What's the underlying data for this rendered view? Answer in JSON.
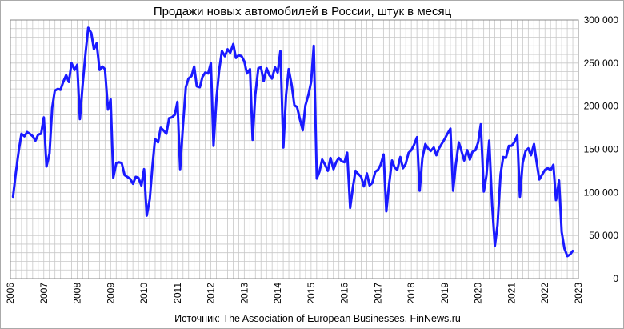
{
  "chart_data": {
    "type": "line",
    "title": "Продажи новых автомобилей в России, штук в месяц",
    "source": "Источник: The Association of European Businesses, FinNews.ru",
    "x_tick_labels": [
      "2006",
      "2007",
      "2008",
      "2009",
      "2010",
      "2011",
      "2012",
      "2013",
      "2014",
      "2015",
      "2016",
      "2017",
      "2018",
      "2019",
      "2020",
      "2021",
      "2022",
      "2023"
    ],
    "y_tick_labels": [
      "0",
      "50 000",
      "100 000",
      "150 000",
      "200 000",
      "250 000",
      "300 000"
    ],
    "xlim": [
      2006,
      2023
    ],
    "ylim": [
      0,
      300000
    ],
    "grid": true,
    "y_axis_side": "right",
    "series_color": "#1a1aff",
    "series": [
      {
        "name": "",
        "points": [
          [
            2006.08,
            95000
          ],
          [
            2006.17,
            125000
          ],
          [
            2006.25,
            148000
          ],
          [
            2006.33,
            168000
          ],
          [
            2006.42,
            165000
          ],
          [
            2006.5,
            170000
          ],
          [
            2006.58,
            168000
          ],
          [
            2006.67,
            165000
          ],
          [
            2006.75,
            160000
          ],
          [
            2006.83,
            167000
          ],
          [
            2006.92,
            168000
          ],
          [
            2007.0,
            187000
          ],
          [
            2007.08,
            130000
          ],
          [
            2007.17,
            145000
          ],
          [
            2007.25,
            198000
          ],
          [
            2007.33,
            218000
          ],
          [
            2007.42,
            220000
          ],
          [
            2007.5,
            219000
          ],
          [
            2007.58,
            228000
          ],
          [
            2007.67,
            236000
          ],
          [
            2007.75,
            228000
          ],
          [
            2007.83,
            250000
          ],
          [
            2007.92,
            242000
          ],
          [
            2008.0,
            248000
          ],
          [
            2008.08,
            185000
          ],
          [
            2008.17,
            228000
          ],
          [
            2008.25,
            262000
          ],
          [
            2008.33,
            291000
          ],
          [
            2008.42,
            285000
          ],
          [
            2008.5,
            266000
          ],
          [
            2008.58,
            273000
          ],
          [
            2008.67,
            242000
          ],
          [
            2008.75,
            246000
          ],
          [
            2008.83,
            243000
          ],
          [
            2008.92,
            196000
          ],
          [
            2009.0,
            208000
          ],
          [
            2009.08,
            117000
          ],
          [
            2009.17,
            134000
          ],
          [
            2009.25,
            135000
          ],
          [
            2009.33,
            134000
          ],
          [
            2009.42,
            120000
          ],
          [
            2009.5,
            118000
          ],
          [
            2009.58,
            116000
          ],
          [
            2009.67,
            110000
          ],
          [
            2009.75,
            118000
          ],
          [
            2009.83,
            117000
          ],
          [
            2009.92,
            108000
          ],
          [
            2010.0,
            127000
          ],
          [
            2010.08,
            73000
          ],
          [
            2010.17,
            92000
          ],
          [
            2010.25,
            130000
          ],
          [
            2010.33,
            162000
          ],
          [
            2010.42,
            158000
          ],
          [
            2010.5,
            175000
          ],
          [
            2010.58,
            172000
          ],
          [
            2010.67,
            168000
          ],
          [
            2010.75,
            186000
          ],
          [
            2010.83,
            187000
          ],
          [
            2010.92,
            190000
          ],
          [
            2011.0,
            205000
          ],
          [
            2011.08,
            127000
          ],
          [
            2011.17,
            180000
          ],
          [
            2011.25,
            222000
          ],
          [
            2011.33,
            232000
          ],
          [
            2011.42,
            235000
          ],
          [
            2011.5,
            246000
          ],
          [
            2011.58,
            223000
          ],
          [
            2011.67,
            222000
          ],
          [
            2011.75,
            234000
          ],
          [
            2011.83,
            239000
          ],
          [
            2011.92,
            238000
          ],
          [
            2012.0,
            250000
          ],
          [
            2012.08,
            154000
          ],
          [
            2012.17,
            210000
          ],
          [
            2012.25,
            242000
          ],
          [
            2012.33,
            264000
          ],
          [
            2012.42,
            258000
          ],
          [
            2012.5,
            266000
          ],
          [
            2012.58,
            262000
          ],
          [
            2012.67,
            272000
          ],
          [
            2012.75,
            256000
          ],
          [
            2012.83,
            259000
          ],
          [
            2012.92,
            258000
          ],
          [
            2013.0,
            252000
          ],
          [
            2013.08,
            238000
          ],
          [
            2013.17,
            243000
          ],
          [
            2013.25,
            161000
          ],
          [
            2013.33,
            213000
          ],
          [
            2013.42,
            244000
          ],
          [
            2013.5,
            245000
          ],
          [
            2013.58,
            229000
          ],
          [
            2013.67,
            244000
          ],
          [
            2013.75,
            236000
          ],
          [
            2013.83,
            232000
          ],
          [
            2013.92,
            245000
          ],
          [
            2014.0,
            239000
          ],
          [
            2014.08,
            264000
          ],
          [
            2014.17,
            152000
          ],
          [
            2014.25,
            213000
          ],
          [
            2014.33,
            243000
          ],
          [
            2014.42,
            224000
          ],
          [
            2014.5,
            201000
          ],
          [
            2014.58,
            199000
          ],
          [
            2014.67,
            184000
          ],
          [
            2014.75,
            172000
          ],
          [
            2014.83,
            201000
          ],
          [
            2014.92,
            213000
          ],
          [
            2015.0,
            228000
          ],
          [
            2015.08,
            270000
          ],
          [
            2015.17,
            116000
          ],
          [
            2015.25,
            124000
          ],
          [
            2015.33,
            138000
          ],
          [
            2015.42,
            132000
          ],
          [
            2015.5,
            125000
          ],
          [
            2015.58,
            140000
          ],
          [
            2015.67,
            127000
          ],
          [
            2015.75,
            135000
          ],
          [
            2015.83,
            140000
          ],
          [
            2015.92,
            136000
          ],
          [
            2016.0,
            135000
          ],
          [
            2016.08,
            146000
          ],
          [
            2016.17,
            82000
          ],
          [
            2016.25,
            106000
          ],
          [
            2016.33,
            125000
          ],
          [
            2016.42,
            121000
          ],
          [
            2016.5,
            118000
          ],
          [
            2016.58,
            107000
          ],
          [
            2016.67,
            122000
          ],
          [
            2016.75,
            108000
          ],
          [
            2016.83,
            111000
          ],
          [
            2016.92,
            124000
          ],
          [
            2017.0,
            126000
          ],
          [
            2017.08,
            132000
          ],
          [
            2017.17,
            144000
          ],
          [
            2017.25,
            78000
          ],
          [
            2017.33,
            108000
          ],
          [
            2017.42,
            137000
          ],
          [
            2017.5,
            129000
          ],
          [
            2017.58,
            126000
          ],
          [
            2017.67,
            141000
          ],
          [
            2017.75,
            128000
          ],
          [
            2017.83,
            133000
          ],
          [
            2017.92,
            146000
          ],
          [
            2018.0,
            149000
          ],
          [
            2018.08,
            155000
          ],
          [
            2018.17,
            164000
          ],
          [
            2018.25,
            102000
          ],
          [
            2018.33,
            140000
          ],
          [
            2018.42,
            156000
          ],
          [
            2018.5,
            151000
          ],
          [
            2018.58,
            148000
          ],
          [
            2018.67,
            152000
          ],
          [
            2018.75,
            143000
          ],
          [
            2018.83,
            151000
          ],
          [
            2018.92,
            157000
          ],
          [
            2019.0,
            162000
          ],
          [
            2019.08,
            168000
          ],
          [
            2019.17,
            174000
          ],
          [
            2019.25,
            102000
          ],
          [
            2019.33,
            132000
          ],
          [
            2019.42,
            158000
          ],
          [
            2019.5,
            148000
          ],
          [
            2019.58,
            137000
          ],
          [
            2019.67,
            149000
          ],
          [
            2019.75,
            138000
          ],
          [
            2019.83,
            147000
          ],
          [
            2019.92,
            149000
          ],
          [
            2020.0,
            158000
          ],
          [
            2020.08,
            179000
          ],
          [
            2020.17,
            101000
          ],
          [
            2020.25,
            120000
          ],
          [
            2020.33,
            160000
          ],
          [
            2020.42,
            85000
          ],
          [
            2020.5,
            38000
          ],
          [
            2020.58,
            62000
          ],
          [
            2020.67,
            121000
          ],
          [
            2020.75,
            141000
          ],
          [
            2020.83,
            140000
          ],
          [
            2020.92,
            154000
          ],
          [
            2021.0,
            154000
          ],
          [
            2021.08,
            158000
          ],
          [
            2021.17,
            166000
          ],
          [
            2021.25,
            95000
          ],
          [
            2021.33,
            134000
          ],
          [
            2021.42,
            148000
          ],
          [
            2021.5,
            151000
          ],
          [
            2021.58,
            143000
          ],
          [
            2021.67,
            156000
          ],
          [
            2021.75,
            135000
          ],
          [
            2021.83,
            115000
          ],
          [
            2021.92,
            121000
          ],
          [
            2022.0,
            126000
          ],
          [
            2022.08,
            128000
          ],
          [
            2022.17,
            126000
          ],
          [
            2022.25,
            132000
          ],
          [
            2022.33,
            91000
          ],
          [
            2022.42,
            114000
          ],
          [
            2022.5,
            54000
          ],
          [
            2022.58,
            35000
          ],
          [
            2022.67,
            26000
          ],
          [
            2022.75,
            28000
          ],
          [
            2022.83,
            32000
          ]
        ]
      }
    ]
  }
}
